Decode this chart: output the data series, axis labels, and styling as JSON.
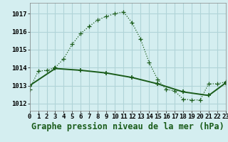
{
  "title": "Graphe pression niveau de la mer (hPa)",
  "background_color": "#d4eef0",
  "grid_color": "#b0d4d8",
  "line_color": "#1a5c1a",
  "ylim": [
    1011.6,
    1017.6
  ],
  "yticks": [
    1012,
    1013,
    1014,
    1015,
    1016,
    1017
  ],
  "series1_x": [
    0,
    1,
    2,
    3,
    4,
    5,
    6,
    7,
    8,
    9,
    10,
    11,
    12,
    13,
    14,
    15,
    16,
    17,
    18,
    19,
    20,
    21,
    22,
    23
  ],
  "series1_y": [
    1012.8,
    1013.8,
    1013.85,
    1014.0,
    1014.5,
    1015.3,
    1015.9,
    1016.3,
    1016.65,
    1016.85,
    1017.0,
    1017.1,
    1016.5,
    1015.6,
    1014.3,
    1013.35,
    1012.8,
    1012.7,
    1012.25,
    1012.2,
    1012.2,
    1013.1,
    1013.1,
    1013.2
  ],
  "series2_x": [
    0,
    3,
    6,
    9,
    12,
    15,
    18,
    21,
    23
  ],
  "series2_y": [
    1013.0,
    1013.95,
    1013.85,
    1013.7,
    1013.45,
    1013.1,
    1012.65,
    1012.45,
    1013.15
  ],
  "title_fontsize": 8.5,
  "tick_fontsize": 6.5
}
